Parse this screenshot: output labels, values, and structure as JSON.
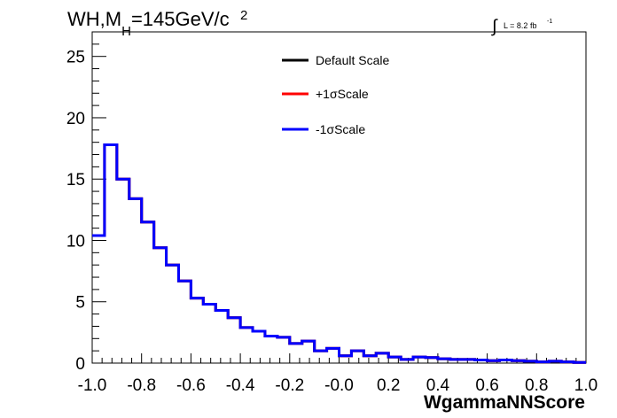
{
  "chart_data": {
    "type": "line",
    "title": "WH,M",
    "title_sub": "H",
    "title_rest": "=145GeV/c",
    "title_sup": "2",
    "lumi_label": "L = 8.2 fb",
    "lumi_sup": "-1",
    "integral_symbol": "∫",
    "xlabel": "WgammaNNScore",
    "ylabel": "",
    "xlim": [
      -1.0,
      1.0
    ],
    "ylim": [
      0,
      27
    ],
    "x_ticks": [
      "-1.0",
      "-0.8",
      "-0.6",
      "-0.4",
      "-0.2",
      "-0.0",
      "0.2",
      "0.4",
      "0.6",
      "0.8",
      "1.0"
    ],
    "x_tick_values": [
      -1.0,
      -0.8,
      -0.6,
      -0.4,
      -0.2,
      0.0,
      0.2,
      0.4,
      0.6,
      0.8,
      1.0
    ],
    "y_ticks": [
      "0",
      "5",
      "10",
      "15",
      "20",
      "25"
    ],
    "y_tick_values": [
      0,
      5,
      10,
      15,
      20,
      25
    ],
    "grid": false,
    "legend_position": "top-center",
    "bin_edges": [
      -1.0,
      -0.95,
      -0.9,
      -0.85,
      -0.8,
      -0.75,
      -0.7,
      -0.65,
      -0.6,
      -0.55,
      -0.5,
      -0.45,
      -0.4,
      -0.35,
      -0.3,
      -0.25,
      -0.2,
      -0.15,
      -0.1,
      -0.05,
      0.0,
      0.05,
      0.1,
      0.15,
      0.2,
      0.25,
      0.3,
      0.35,
      0.4,
      0.45,
      0.5,
      0.55,
      0.6,
      0.65,
      0.7,
      0.75,
      0.8,
      0.85,
      0.9,
      0.95,
      1.0
    ],
    "series": [
      {
        "name": "Default Scale",
        "color": "#000000",
        "values": [
          10.4,
          17.8,
          15.0,
          13.4,
          11.5,
          9.4,
          8.0,
          6.7,
          5.3,
          4.8,
          4.3,
          3.7,
          2.9,
          2.6,
          2.2,
          2.1,
          1.6,
          1.8,
          1.0,
          1.2,
          0.6,
          1.0,
          0.6,
          0.8,
          0.5,
          0.3,
          0.5,
          0.45,
          0.35,
          0.3,
          0.3,
          0.25,
          0.2,
          0.25,
          0.2,
          0.15,
          0.1,
          0.15,
          0.1,
          0.05
        ]
      },
      {
        "name": "+1σScale",
        "color": "#ff0000",
        "values": [
          10.4,
          17.8,
          15.0,
          13.4,
          11.5,
          9.4,
          8.0,
          6.7,
          5.3,
          4.8,
          4.3,
          3.7,
          2.9,
          2.6,
          2.2,
          2.1,
          1.6,
          1.8,
          1.0,
          1.2,
          0.6,
          1.0,
          0.6,
          0.8,
          0.5,
          0.3,
          0.5,
          0.45,
          0.35,
          0.3,
          0.3,
          0.25,
          0.2,
          0.25,
          0.2,
          0.15,
          0.1,
          0.15,
          0.1,
          0.05
        ]
      },
      {
        "name": "-1σScale",
        "color": "#0000ff",
        "values": [
          10.4,
          17.8,
          15.0,
          13.4,
          11.5,
          9.4,
          8.0,
          6.7,
          5.3,
          4.8,
          4.3,
          3.7,
          2.9,
          2.6,
          2.2,
          2.1,
          1.6,
          1.8,
          1.0,
          1.2,
          0.6,
          1.0,
          0.6,
          0.8,
          0.5,
          0.3,
          0.5,
          0.45,
          0.35,
          0.3,
          0.3,
          0.25,
          0.2,
          0.25,
          0.2,
          0.15,
          0.1,
          0.15,
          0.1,
          0.05
        ]
      }
    ]
  }
}
